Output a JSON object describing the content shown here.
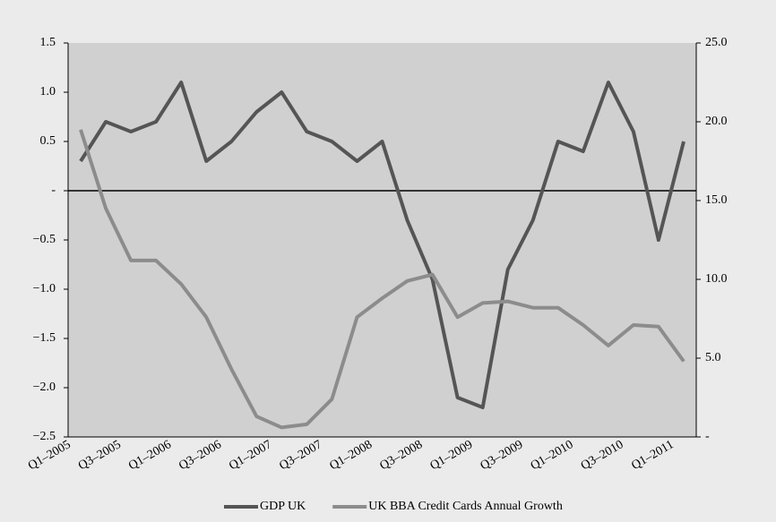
{
  "chart_data": {
    "type": "line",
    "categories": [
      "Q1–2005",
      null,
      "Q3–2005",
      null,
      "Q1–2006",
      null,
      "Q3–2006",
      null,
      "Q1–2007",
      null,
      "Q3–2007",
      null,
      "Q1–2008",
      null,
      "Q3–2008",
      null,
      "Q1–2009",
      null,
      "Q3–2009",
      null,
      "Q1–2010",
      null,
      "Q3–2010",
      null,
      "Q1–2011"
    ],
    "series": [
      {
        "name": "GDP UK",
        "color": "#555555",
        "axis": "y",
        "values": [
          0.3,
          0.7,
          0.6,
          0.7,
          1.1,
          0.3,
          0.5,
          0.8,
          1.0,
          0.6,
          0.5,
          0.3,
          0.5,
          -0.3,
          -0.9,
          -2.1,
          -2.2,
          -0.8,
          -0.3,
          0.5,
          0.4,
          1.1,
          0.6,
          -0.5,
          0.5
        ]
      },
      {
        "name": "UK BBA Credit Cards Annual Growth",
        "color": "#8c8c8c",
        "axis": "y2",
        "values": [
          19.5,
          14.5,
          11.2,
          11.2,
          9.7,
          7.6,
          4.3,
          1.3,
          0.6,
          0.8,
          2.4,
          7.6,
          8.8,
          9.9,
          10.3,
          7.6,
          8.5,
          8.6,
          8.2,
          8.2,
          7.1,
          5.8,
          7.1,
          7.0,
          4.8
        ]
      }
    ],
    "ylim": [
      -2.5,
      1.5
    ],
    "yticks": [
      1.5,
      {
        "value": 1.0,
        "label": "1.0"
      },
      0.5,
      {
        "value": 0,
        "label": "-"
      },
      {
        "value": -0.5,
        "label": "−0.5"
      },
      {
        "value": -1.0,
        "label": "−1.0"
      },
      {
        "value": -1.5,
        "label": "−1.5"
      },
      {
        "value": -2.0,
        "label": "−2.0"
      },
      {
        "value": -2.5,
        "label": "−2.5"
      }
    ],
    "y2lim": [
      0,
      25
    ],
    "y2ticks": [
      {
        "value": 25,
        "label": "25.0"
      },
      {
        "value": 20,
        "label": "20.0"
      },
      {
        "value": 15,
        "label": "15.0"
      },
      {
        "value": 10,
        "label": "10.0"
      },
      {
        "value": 5,
        "label": "5.0"
      },
      {
        "value": 0,
        "label": "-"
      }
    ],
    "legend": "bottom"
  }
}
